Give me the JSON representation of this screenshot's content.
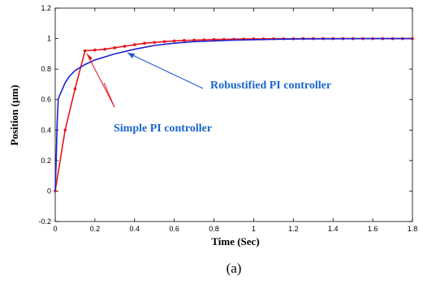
{
  "chart_data": {
    "type": "line",
    "title": "",
    "xlabel": "Time (Sec)",
    "ylabel": "Position (µm)",
    "xlim": [
      0,
      1.8
    ],
    "ylim": [
      -0.2,
      1.2
    ],
    "xticks": [
      0,
      0.2,
      0.4,
      0.6,
      0.8,
      1,
      1.2,
      1.4,
      1.6,
      1.8
    ],
    "yticks": [
      -0.2,
      0,
      0.2,
      0.4,
      0.6,
      0.8,
      1,
      1.2
    ],
    "grid": false,
    "series": [
      {
        "name": "Simple PI controller",
        "color": "#e8141c",
        "markers": true,
        "x": [
          0,
          0.05,
          0.1,
          0.15,
          0.2,
          0.25,
          0.3,
          0.35,
          0.4,
          0.45,
          0.5,
          0.55,
          0.6,
          0.65,
          0.7,
          0.75,
          0.8,
          0.85,
          0.9,
          0.95,
          1.0,
          1.05,
          1.1,
          1.15,
          1.2,
          1.25,
          1.3,
          1.35,
          1.4,
          1.45,
          1.5,
          1.55,
          1.6,
          1.65,
          1.7,
          1.75,
          1.8
        ],
        "y": [
          0,
          0.4,
          0.67,
          0.92,
          0.925,
          0.93,
          0.94,
          0.95,
          0.96,
          0.97,
          0.975,
          0.98,
          0.985,
          0.988,
          0.99,
          0.992,
          0.994,
          0.995,
          0.996,
          0.997,
          0.998,
          0.998,
          0.999,
          0.999,
          0.999,
          1.0,
          1.0,
          1.0,
          1.0,
          1.0,
          1.0,
          1.0,
          1.0,
          1.0,
          1.0,
          1.0,
          1.0
        ]
      },
      {
        "name": "Robustified PI controller",
        "color": "#1f1fd0",
        "markers": false,
        "x": [
          0,
          0.005,
          0.01,
          0.015,
          0.02,
          0.03,
          0.04,
          0.05,
          0.07,
          0.1,
          0.15,
          0.2,
          0.3,
          0.4,
          0.5,
          0.6,
          0.7,
          0.8,
          0.9,
          1.0,
          1.1,
          1.2,
          1.4,
          1.6,
          1.8
        ],
        "y": [
          0,
          0.2,
          0.45,
          0.6,
          0.62,
          0.65,
          0.68,
          0.71,
          0.75,
          0.79,
          0.83,
          0.86,
          0.9,
          0.93,
          0.955,
          0.97,
          0.98,
          0.985,
          0.99,
          0.993,
          0.995,
          0.997,
          0.999,
          1.0,
          1.0
        ]
      }
    ],
    "annotations": [
      {
        "text": "Robustified PI controller",
        "color": "#1a66cc"
      },
      {
        "text": "Simple PI controller",
        "color": "#1a66cc"
      }
    ],
    "caption": "(a)"
  }
}
